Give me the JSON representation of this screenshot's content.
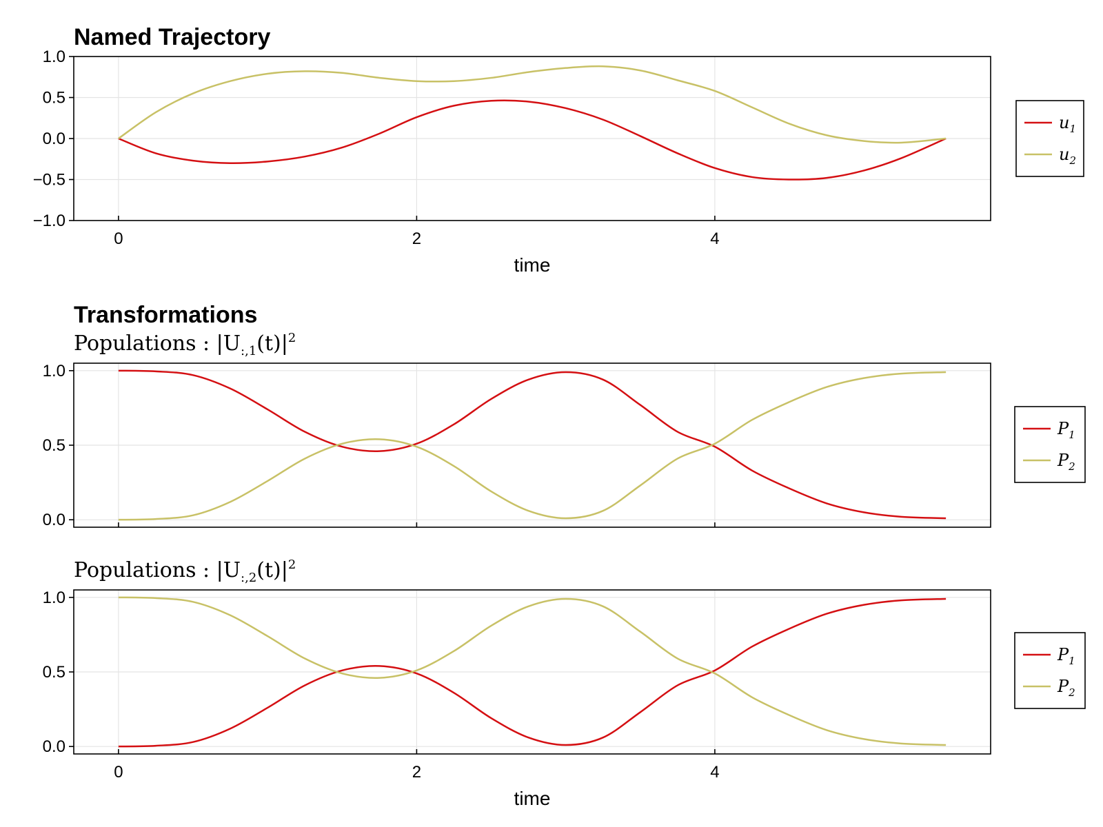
{
  "figure": {
    "title_main": "Named Trajectory",
    "title_section": "Transformations",
    "xlabel": "time"
  },
  "colors": {
    "series1": "#d40f12",
    "series2": "#c8c166"
  },
  "chart_data": [
    {
      "type": "line",
      "title": "Named Trajectory",
      "xlabel": "time",
      "ylabel": "",
      "xlim": [
        -0.3,
        5.85
      ],
      "ylim": [
        -1.0,
        1.0
      ],
      "xticks": [
        "0",
        "2",
        "4"
      ],
      "yticks": [
        "1.0",
        "0.5",
        "0.0",
        "−0.5",
        "−1.0"
      ],
      "x": [
        0.0,
        0.25,
        0.5,
        0.75,
        1.0,
        1.25,
        1.5,
        1.75,
        2.0,
        2.25,
        2.5,
        2.75,
        3.0,
        3.25,
        3.5,
        3.75,
        4.0,
        4.25,
        4.5,
        4.75,
        5.0,
        5.25,
        5.55
      ],
      "series": [
        {
          "name": "u",
          "sub": "1",
          "color": "#d40f12",
          "values": [
            0.0,
            -0.18,
            -0.27,
            -0.3,
            -0.28,
            -0.22,
            -0.11,
            0.06,
            0.26,
            0.4,
            0.46,
            0.45,
            0.37,
            0.23,
            0.03,
            -0.18,
            -0.36,
            -0.47,
            -0.5,
            -0.48,
            -0.39,
            -0.24,
            0.0
          ]
        },
        {
          "name": "u",
          "sub": "2",
          "color": "#c8c166",
          "values": [
            0.0,
            0.32,
            0.55,
            0.7,
            0.79,
            0.82,
            0.8,
            0.74,
            0.7,
            0.7,
            0.74,
            0.81,
            0.86,
            0.88,
            0.83,
            0.71,
            0.58,
            0.38,
            0.18,
            0.04,
            -0.03,
            -0.05,
            0.0
          ]
        }
      ],
      "legend_position": "right"
    },
    {
      "type": "line",
      "title": "Populations :  |U_{:,1}(t)|^2",
      "title_parts": {
        "pre": "Populations :  |U",
        "sub": ":,1",
        "mid": "(t)|",
        "sup": "2"
      },
      "xlabel": "",
      "xlim": [
        -0.3,
        5.85
      ],
      "ylim": [
        -0.05,
        1.05
      ],
      "yticks": [
        "1.0",
        "0.5",
        "0.0"
      ],
      "x": [
        0.0,
        0.25,
        0.5,
        0.75,
        1.0,
        1.25,
        1.5,
        1.75,
        2.0,
        2.25,
        2.5,
        2.75,
        3.0,
        3.25,
        3.5,
        3.75,
        4.0,
        4.25,
        4.5,
        4.75,
        5.0,
        5.25,
        5.55
      ],
      "series": [
        {
          "name": "P",
          "sub": "1",
          "color": "#d40f12",
          "values": [
            1.0,
            0.995,
            0.97,
            0.88,
            0.74,
            0.59,
            0.49,
            0.46,
            0.51,
            0.64,
            0.81,
            0.94,
            0.99,
            0.94,
            0.77,
            0.59,
            0.49,
            0.33,
            0.21,
            0.11,
            0.05,
            0.02,
            0.01
          ]
        },
        {
          "name": "P",
          "sub": "2",
          "color": "#c8c166",
          "values": [
            0.0,
            0.005,
            0.03,
            0.12,
            0.26,
            0.41,
            0.51,
            0.54,
            0.49,
            0.36,
            0.19,
            0.06,
            0.01,
            0.06,
            0.23,
            0.41,
            0.51,
            0.67,
            0.79,
            0.89,
            0.95,
            0.98,
            0.99
          ]
        }
      ],
      "legend_position": "right"
    },
    {
      "type": "line",
      "title": "Populations :  |U_{:,2}(t)|^2",
      "title_parts": {
        "pre": "Populations :  |U",
        "sub": ":,2",
        "mid": "(t)|",
        "sup": "2"
      },
      "xlabel": "time",
      "xlim": [
        -0.3,
        5.85
      ],
      "ylim": [
        -0.05,
        1.05
      ],
      "xticks": [
        "0",
        "2",
        "4"
      ],
      "yticks": [
        "1.0",
        "0.5",
        "0.0"
      ],
      "x": [
        0.0,
        0.25,
        0.5,
        0.75,
        1.0,
        1.25,
        1.5,
        1.75,
        2.0,
        2.25,
        2.5,
        2.75,
        3.0,
        3.25,
        3.5,
        3.75,
        4.0,
        4.25,
        4.5,
        4.75,
        5.0,
        5.25,
        5.55
      ],
      "series": [
        {
          "name": "P",
          "sub": "1",
          "color": "#d40f12",
          "values": [
            0.0,
            0.005,
            0.03,
            0.12,
            0.26,
            0.41,
            0.51,
            0.54,
            0.49,
            0.36,
            0.19,
            0.06,
            0.01,
            0.06,
            0.23,
            0.41,
            0.51,
            0.67,
            0.79,
            0.89,
            0.95,
            0.98,
            0.99
          ]
        },
        {
          "name": "P",
          "sub": "2",
          "color": "#c8c166",
          "values": [
            1.0,
            0.995,
            0.97,
            0.88,
            0.74,
            0.59,
            0.49,
            0.46,
            0.51,
            0.64,
            0.81,
            0.94,
            0.99,
            0.94,
            0.77,
            0.59,
            0.49,
            0.33,
            0.21,
            0.11,
            0.05,
            0.02,
            0.01
          ]
        }
      ],
      "legend_position": "right"
    }
  ]
}
